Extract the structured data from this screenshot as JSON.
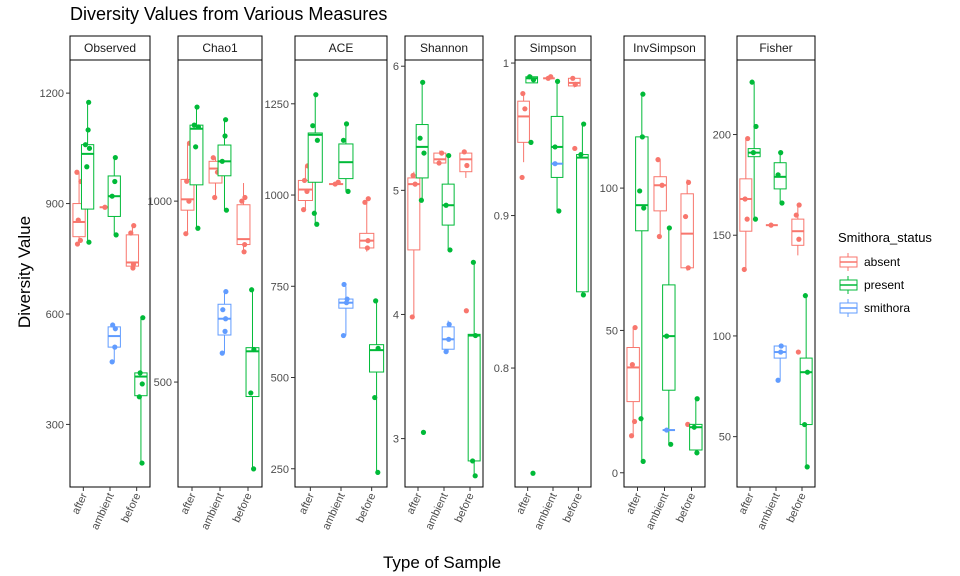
{
  "chart_data": {
    "type": "box",
    "title": "Diversity Values from Various Measures",
    "xlabel": "Type of Sample",
    "ylabel": "Diversity Value",
    "categories": [
      "after",
      "ambient",
      "before"
    ],
    "legend": {
      "title": "Smithora_status",
      "position": "right",
      "items": [
        {
          "name": "absent",
          "color": "#F8766D"
        },
        {
          "name": "present",
          "color": "#00BA38"
        },
        {
          "name": "smithora",
          "color": "#619CFF"
        }
      ]
    },
    "grid": false,
    "panels": [
      {
        "name": "Observed",
        "ylim": [
          130,
          1290
        ],
        "yticks": [
          300,
          600,
          900,
          1200
        ],
        "groups": [
          {
            "category": "after",
            "status": "absent",
            "q1": 810,
            "median": 850,
            "q3": 900,
            "whisker_low": 790,
            "whisker_high": 985,
            "points": [
              790,
              800,
              855,
              960,
              985
            ]
          },
          {
            "category": "after",
            "status": "present",
            "q1": 885,
            "median": 1035,
            "q3": 1060,
            "whisker_low": 795,
            "whisker_high": 1175,
            "points": [
              795,
              1000,
              1050,
              1060,
              1100,
              1175
            ]
          },
          {
            "category": "ambient",
            "status": "absent",
            "median": 890,
            "points": [
              890
            ]
          },
          {
            "category": "ambient",
            "status": "present",
            "q1": 865,
            "median": 920,
            "q3": 975,
            "whisker_low": 815,
            "whisker_high": 1025,
            "points": [
              815,
              920,
              960,
              1025
            ]
          },
          {
            "category": "ambient",
            "status": "smithora",
            "q1": 510,
            "median": 540,
            "q3": 565,
            "whisker_low": 470,
            "whisker_high": 570,
            "points": [
              470,
              510,
              560,
              570
            ]
          },
          {
            "category": "before",
            "status": "absent",
            "q1": 730,
            "median": 740,
            "q3": 815,
            "whisker_low": 725,
            "whisker_high": 840,
            "points": [
              725,
              735,
              820,
              840
            ]
          },
          {
            "category": "before",
            "status": "present",
            "q1": 378,
            "median": 430,
            "q3": 440,
            "whisker_low": 195,
            "whisker_high": 590,
            "points": [
              195,
              375,
              410,
              440,
              590
            ]
          }
        ]
      },
      {
        "name": "Chao1",
        "ylim": [
          210,
          1390
        ],
        "yticks": [
          500,
          1000
        ],
        "groups": [
          {
            "category": "after",
            "status": "absent",
            "q1": 975,
            "median": 1005,
            "q3": 1060,
            "whisker_low": 910,
            "whisker_high": 1160,
            "points": [
              910,
              1000,
              1055,
              1160
            ]
          },
          {
            "category": "after",
            "status": "present",
            "q1": 1045,
            "median": 1200,
            "q3": 1210,
            "whisker_low": 925,
            "whisker_high": 1260,
            "points": [
              925,
              1150,
              1205,
              1210,
              1260
            ]
          },
          {
            "category": "ambient",
            "status": "absent",
            "q1": 1050,
            "median": 1090,
            "q3": 1110,
            "whisker_low": 1010,
            "whisker_high": 1120,
            "points": [
              1010,
              1080,
              1120
            ]
          },
          {
            "category": "ambient",
            "status": "present",
            "q1": 1070,
            "median": 1110,
            "q3": 1155,
            "whisker_low": 975,
            "whisker_high": 1225,
            "points": [
              975,
              1110,
              1180,
              1225
            ]
          },
          {
            "category": "ambient",
            "status": "smithora",
            "q1": 630,
            "median": 675,
            "q3": 715,
            "whisker_low": 580,
            "whisker_high": 750,
            "points": [
              580,
              640,
              675,
              700,
              750
            ]
          },
          {
            "category": "before",
            "status": "absent",
            "q1": 880,
            "median": 895,
            "q3": 990,
            "whisker_low": 860,
            "whisker_high": 1050,
            "points": [
              860,
              880,
              1000,
              1010
            ]
          },
          {
            "category": "before",
            "status": "present",
            "q1": 460,
            "median": 585,
            "q3": 595,
            "whisker_low": 260,
            "whisker_high": 755,
            "points": [
              260,
              470,
              590,
              755
            ]
          }
        ]
      },
      {
        "name": "ACE",
        "ylim": [
          200,
          1370
        ],
        "yticks": [
          250,
          500,
          750,
          1000,
          1250
        ],
        "groups": [
          {
            "category": "after",
            "status": "absent",
            "q1": 985,
            "median": 1015,
            "q3": 1040,
            "whisker_low": 960,
            "whisker_high": 1080,
            "points": [
              960,
              1010,
              1040,
              1080
            ]
          },
          {
            "category": "after",
            "status": "present",
            "q1": 1035,
            "median": 1165,
            "q3": 1170,
            "whisker_low": 920,
            "whisker_high": 1275,
            "points": [
              920,
              950,
              1150,
              1190,
              1275
            ]
          },
          {
            "category": "ambient",
            "status": "absent",
            "median": 1030,
            "points": [
              1030,
              1035
            ]
          },
          {
            "category": "ambient",
            "status": "present",
            "q1": 1045,
            "median": 1090,
            "q3": 1140,
            "whisker_low": 1010,
            "whisker_high": 1195,
            "points": [
              1010,
              1150,
              1195
            ]
          },
          {
            "category": "ambient",
            "status": "smithora",
            "q1": 690,
            "median": 705,
            "q3": 715,
            "whisker_low": 615,
            "whisker_high": 750,
            "points": [
              615,
              705,
              715,
              755
            ]
          },
          {
            "category": "before",
            "status": "absent",
            "q1": 855,
            "median": 875,
            "q3": 895,
            "whisker_low": 845,
            "whisker_high": 990,
            "points": [
              855,
              875,
              980,
              990
            ]
          },
          {
            "category": "before",
            "status": "present",
            "q1": 515,
            "median": 575,
            "q3": 590,
            "whisker_low": 240,
            "whisker_high": 710,
            "points": [
              240,
              445,
              580,
              710
            ]
          }
        ]
      },
      {
        "name": "Shannon",
        "ylim": [
          2.61,
          6.05
        ],
        "yticks": [
          3,
          4,
          5,
          6
        ],
        "groups": [
          {
            "category": "after",
            "status": "absent",
            "q1": 4.52,
            "median": 5.05,
            "q3": 5.1,
            "whisker_low": 3.98,
            "whisker_high": 5.15,
            "points": [
              3.98,
              5.05,
              5.12
            ]
          },
          {
            "category": "after",
            "status": "present",
            "q1": 5.1,
            "median": 5.35,
            "q3": 5.53,
            "whisker_low": 4.92,
            "whisker_high": 5.87,
            "points": [
              3.05,
              4.92,
              5.3,
              5.42,
              5.87
            ]
          },
          {
            "category": "ambient",
            "status": "absent",
            "q1": 5.22,
            "median": 5.25,
            "q3": 5.3,
            "whisker_low": 5.21,
            "whisker_high": 5.32,
            "points": [
              5.22,
              5.3
            ]
          },
          {
            "category": "ambient",
            "status": "present",
            "q1": 4.72,
            "median": 4.88,
            "q3": 5.05,
            "whisker_low": 4.52,
            "whisker_high": 5.28,
            "points": [
              4.52,
              4.88,
              5.28
            ]
          },
          {
            "category": "ambient",
            "status": "smithora",
            "q1": 3.72,
            "median": 3.8,
            "q3": 3.9,
            "whisker_low": 3.7,
            "whisker_high": 3.95,
            "points": [
              3.7,
              3.8,
              3.92
            ]
          },
          {
            "category": "before",
            "status": "absent",
            "q1": 5.15,
            "median": 5.25,
            "q3": 5.3,
            "whisker_low": 5.1,
            "whisker_high": 5.32,
            "points": [
              4.03,
              5.2,
              5.31
            ]
          },
          {
            "category": "before",
            "status": "present",
            "q1": 2.82,
            "median": 3.83,
            "q3": 3.84,
            "whisker_low": 2.7,
            "whisker_high": 4.42,
            "points": [
              2.7,
              2.82,
              3.83,
              4.42
            ]
          }
        ]
      },
      {
        "name": "Simpson",
        "ylim": [
          0.722,
          1.002
        ],
        "yticks": [
          0.8,
          0.9,
          1.0
        ],
        "groups": [
          {
            "category": "after",
            "status": "absent",
            "q1": 0.948,
            "median": 0.965,
            "q3": 0.975,
            "whisker_low": 0.935,
            "whisker_high": 0.98,
            "points": [
              0.925,
              0.97,
              0.98
            ]
          },
          {
            "category": "after",
            "status": "present",
            "q1": 0.987,
            "median": 0.99,
            "q3": 0.991,
            "whisker_low": 0.987,
            "whisker_high": 0.992,
            "points": [
              0.731,
              0.948,
              0.989,
              0.991
            ]
          },
          {
            "category": "ambient",
            "status": "absent",
            "median": 0.99,
            "points": [
              0.99,
              0.991
            ]
          },
          {
            "category": "ambient",
            "status": "present",
            "q1": 0.925,
            "median": 0.945,
            "q3": 0.965,
            "whisker_low": 0.903,
            "whisker_high": 0.988,
            "points": [
              0.903,
              0.945,
              0.988
            ]
          },
          {
            "category": "ambient",
            "status": "smithora",
            "median": 0.934,
            "points": [
              0.934
            ]
          },
          {
            "category": "before",
            "status": "absent",
            "q1": 0.985,
            "median": 0.987,
            "q3": 0.99,
            "whisker_low": 0.984,
            "whisker_high": 0.991,
            "points": [
              0.944,
              0.986,
              0.99
            ]
          },
          {
            "category": "before",
            "status": "present",
            "q1": 0.85,
            "median": 0.938,
            "q3": 0.94,
            "whisker_low": 0.848,
            "whisker_high": 0.96,
            "points": [
              0.848,
              0.94,
              0.96
            ]
          }
        ]
      },
      {
        "name": "InvSimpson",
        "ylim": [
          -5,
          145
        ],
        "yticks": [
          0,
          50,
          100
        ],
        "groups": [
          {
            "category": "after",
            "status": "absent",
            "q1": 25,
            "median": 37,
            "q3": 44,
            "whisker_low": 13,
            "whisker_high": 51,
            "points": [
              13,
              18,
              38,
              51
            ]
          },
          {
            "category": "after",
            "status": "present",
            "q1": 85,
            "median": 94,
            "q3": 118,
            "whisker_low": 4,
            "whisker_high": 133,
            "points": [
              4,
              19,
              93,
              99,
              118,
              133
            ]
          },
          {
            "category": "ambient",
            "status": "absent",
            "q1": 92,
            "median": 101,
            "q3": 104,
            "whisker_low": 83,
            "whisker_high": 110,
            "points": [
              83,
              101,
              110
            ]
          },
          {
            "category": "ambient",
            "status": "present",
            "q1": 29,
            "median": 48,
            "q3": 66,
            "whisker_low": 10,
            "whisker_high": 86,
            "points": [
              10,
              48,
              86
            ]
          },
          {
            "category": "ambient",
            "status": "smithora",
            "median": 15,
            "points": [
              15
            ]
          },
          {
            "category": "before",
            "status": "absent",
            "q1": 72,
            "median": 84,
            "q3": 98,
            "whisker_low": 71,
            "whisker_high": 103,
            "points": [
              17,
              72,
              90,
              102
            ]
          },
          {
            "category": "before",
            "status": "present",
            "q1": 8,
            "median": 16,
            "q3": 17,
            "whisker_low": 7,
            "whisker_high": 26,
            "points": [
              7,
              16,
              26
            ]
          }
        ]
      },
      {
        "name": "Fisher",
        "ylim": [
          25,
          237
        ],
        "yticks": [
          50,
          100,
          150,
          200
        ],
        "groups": [
          {
            "category": "after",
            "status": "absent",
            "q1": 152,
            "median": 168,
            "q3": 178,
            "whisker_low": 133,
            "whisker_high": 198,
            "points": [
              133,
              158,
              168,
              198
            ]
          },
          {
            "category": "after",
            "status": "present",
            "q1": 189,
            "median": 191,
            "q3": 193,
            "whisker_low": 158,
            "whisker_high": 226,
            "points": [
              158,
              191,
              204,
              226
            ]
          },
          {
            "category": "ambient",
            "status": "absent",
            "median": 155,
            "points": [
              155
            ]
          },
          {
            "category": "ambient",
            "status": "present",
            "q1": 173,
            "median": 179,
            "q3": 186,
            "whisker_low": 166,
            "whisker_high": 191,
            "points": [
              166,
              180,
              191
            ]
          },
          {
            "category": "ambient",
            "status": "smithora",
            "q1": 89,
            "median": 92,
            "q3": 95,
            "whisker_low": 78,
            "whisker_high": 96,
            "points": [
              78,
              92,
              95
            ]
          },
          {
            "category": "before",
            "status": "absent",
            "q1": 145,
            "median": 152,
            "q3": 158,
            "whisker_low": 140,
            "whisker_high": 165,
            "points": [
              92,
              148,
              160,
              165
            ]
          },
          {
            "category": "before",
            "status": "present",
            "q1": 56,
            "median": 82,
            "q3": 89,
            "whisker_low": 35,
            "whisker_high": 120,
            "points": [
              35,
              56,
              82,
              120
            ]
          }
        ]
      }
    ]
  }
}
